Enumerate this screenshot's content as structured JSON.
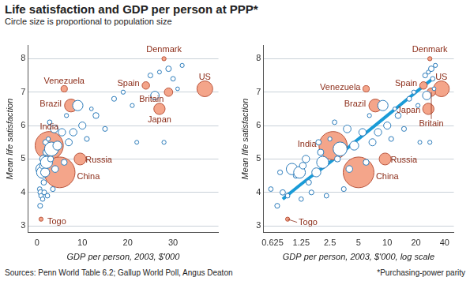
{
  "title": "Life satisfaction and GDP per person at PPP*",
  "subtitle": "Circle size is proportional to population size",
  "source": "Sources: Penn World Table 6.2; Gallup World Poll, Angus Deaton",
  "note": "*Purchasing-power parity",
  "chart_data": [
    {
      "type": "scatter",
      "x_label": "GDP per person, 2003, $'000",
      "y_label": "Mean life satisfaction",
      "xlim": [
        -2,
        40
      ],
      "xticks": [
        0,
        10,
        20,
        30
      ],
      "ylim": [
        2.8,
        8.4
      ],
      "yticks": [
        3,
        4,
        5,
        6,
        7,
        8
      ],
      "grid": "y",
      "series": [
        {
          "type": "scatter",
          "labels": [
            "Denmark",
            "Venezuela",
            "Spain",
            "US",
            "Britain",
            "Japan",
            "Brazil",
            "India",
            "Russia",
            "China",
            "Togo",
            null,
            null,
            null,
            null,
            null,
            null,
            null,
            null,
            null,
            null,
            null,
            null,
            null,
            null,
            null,
            null,
            null,
            null,
            null,
            null,
            null,
            null,
            null,
            null,
            null,
            null,
            null,
            null,
            null,
            null,
            null,
            null,
            null,
            null,
            null,
            null,
            null,
            null,
            null,
            null,
            null,
            null,
            null,
            null,
            null,
            null,
            null,
            null,
            null
          ],
          "x": [
            28,
            6.0,
            24,
            37,
            29,
            27,
            7.5,
            2.7,
            9.5,
            5.0,
            0.9,
            0.6,
            0.7,
            0.75,
            0.8,
            0.9,
            1.0,
            1.1,
            1.2,
            1.25,
            1.3,
            1.4,
            1.5,
            1.6,
            1.8,
            1.9,
            2.0,
            2.1,
            2.3,
            2.5,
            2.8,
            3.0,
            3.2,
            3.5,
            3.8,
            4.0,
            4.5,
            5.5,
            6.0,
            6.5,
            7.0,
            8.0,
            9.0,
            10,
            11,
            12,
            13,
            15,
            17,
            19,
            21,
            22,
            25,
            26,
            27,
            30,
            31,
            32,
            29,
            28
          ],
          "values": [
            8.0,
            7.1,
            7.2,
            7.1,
            7.0,
            6.5,
            6.6,
            5.4,
            5.0,
            4.6,
            3.2,
            4.1,
            3.6,
            4.6,
            4.0,
            3.9,
            4.7,
            4.5,
            4.6,
            3.8,
            4.8,
            5.0,
            4.3,
            4.0,
            4.6,
            5.5,
            5.2,
            4.9,
            3.9,
            5.6,
            6.1,
            5.0,
            5.3,
            4.1,
            5.9,
            4.7,
            5.4,
            5.8,
            4.9,
            6.3,
            5.5,
            5.8,
            6.6,
            6.0,
            5.6,
            6.5,
            6.3,
            5.9,
            6.8,
            7.0,
            6.6,
            5.5,
            7.5,
            6.9,
            7.6,
            7.4,
            7.1,
            7.8,
            7.7,
            5.5
          ],
          "population": [
            5.4,
            26,
            42,
            290,
            59,
            127,
            178,
            1070,
            145,
            1290,
            5,
            8,
            10,
            10,
            15,
            8,
            130,
            12,
            140,
            7,
            30,
            40,
            15,
            10,
            70,
            15,
            25,
            150,
            8,
            5,
            8,
            20,
            215,
            10,
            45,
            30,
            70,
            40,
            20,
            5,
            35,
            40,
            102,
            38,
            10,
            3,
            20,
            10,
            10,
            5,
            5,
            4,
            10,
            60,
            4,
            8,
            3,
            5,
            16,
            5
          ],
          "colors": [
            "#f4a58a",
            "#f4a58a",
            "#f4a58a",
            "#f4a58a",
            "#f4a58a",
            "#f4a58a",
            "#f4a58a",
            "#f4a58a",
            "#f4a58a",
            "#f4a58a",
            "#f4a58a",
            "#ffffff",
            "#ffffff",
            "#ffffff",
            "#ffffff",
            "#ffffff",
            "#ffffff",
            "#ffffff",
            "#ffffff",
            "#ffffff",
            "#ffffff",
            "#ffffff",
            "#ffffff",
            "#ffffff",
            "#ffffff",
            "#ffffff",
            "#ffffff",
            "#ffffff",
            "#ffffff",
            "#ffffff",
            "#ffffff",
            "#ffffff",
            "#ffffff",
            "#ffffff",
            "#ffffff",
            "#ffffff",
            "#ffffff",
            "#ffffff",
            "#ffffff",
            "#ffffff",
            "#ffffff",
            "#ffffff",
            "#ffffff",
            "#ffffff",
            "#ffffff",
            "#ffffff",
            "#ffffff",
            "#ffffff",
            "#ffffff",
            "#ffffff",
            "#ffffff",
            "#ffffff",
            "#ffffff",
            "#ffffff",
            "#ffffff",
            "#ffffff",
            "#ffffff",
            "#ffffff",
            "#ffffff",
            "#ffffff"
          ]
        }
      ]
    },
    {
      "type": "scatter",
      "x_label": "GDP per person, 2003, $'000, log scale",
      "y_label": "Mean life satisfaction",
      "log": "x",
      "xlim": [
        0.5,
        50
      ],
      "xticks": [
        0.625,
        1.25,
        2.5,
        5,
        10,
        20,
        40
      ],
      "ylim": [
        2.8,
        8.4
      ],
      "yticks": [
        3,
        4,
        5,
        6,
        7,
        8
      ],
      "grid": "y",
      "series": [
        {
          "type": "scatter",
          "labels": [
            "Denmark",
            "Venezuela",
            "Spain",
            "US",
            "Britain",
            "Japan",
            "Brazil",
            "India",
            "Russia",
            "China",
            "Togo",
            null,
            null,
            null,
            null,
            null,
            null,
            null,
            null,
            null,
            null,
            null,
            null,
            null,
            null,
            null,
            null,
            null,
            null,
            null,
            null,
            null,
            null,
            null,
            null,
            null,
            null,
            null,
            null,
            null,
            null,
            null,
            null,
            null,
            null,
            null,
            null,
            null,
            null,
            null,
            null,
            null,
            null,
            null,
            null,
            null,
            null,
            null,
            null,
            null
          ],
          "x": [
            28,
            6.0,
            24,
            37,
            29,
            27,
            7.5,
            2.7,
            9.5,
            5.0,
            0.9,
            0.6,
            0.7,
            0.75,
            0.8,
            0.9,
            1.0,
            1.1,
            1.2,
            1.25,
            1.3,
            1.4,
            1.5,
            1.6,
            1.8,
            1.9,
            2.0,
            2.1,
            2.3,
            2.5,
            2.8,
            3.0,
            3.2,
            3.5,
            3.8,
            4.0,
            4.5,
            5.5,
            6.0,
            6.5,
            7.0,
            8.0,
            9.0,
            10,
            11,
            12,
            13,
            15,
            17,
            19,
            21,
            22,
            25,
            26,
            27,
            30,
            31,
            32,
            29,
            28
          ],
          "values": [
            8.0,
            7.1,
            7.2,
            7.1,
            7.0,
            6.5,
            6.6,
            5.4,
            5.0,
            4.6,
            3.2,
            4.1,
            3.6,
            4.6,
            4.0,
            3.9,
            4.7,
            4.5,
            4.6,
            3.8,
            4.8,
            5.0,
            4.3,
            4.0,
            4.6,
            5.5,
            5.2,
            4.9,
            3.9,
            5.6,
            6.1,
            5.0,
            5.3,
            4.1,
            5.9,
            4.7,
            5.4,
            5.8,
            4.9,
            6.3,
            5.5,
            5.8,
            6.6,
            6.0,
            5.6,
            6.5,
            6.3,
            5.9,
            6.8,
            7.0,
            6.6,
            5.5,
            7.5,
            6.9,
            7.6,
            7.4,
            7.1,
            7.8,
            7.7,
            5.5
          ],
          "population": [
            5.4,
            26,
            42,
            290,
            59,
            127,
            178,
            1070,
            145,
            1290,
            5,
            8,
            10,
            10,
            15,
            8,
            130,
            12,
            140,
            7,
            30,
            40,
            15,
            10,
            70,
            15,
            25,
            150,
            8,
            5,
            8,
            20,
            215,
            10,
            45,
            30,
            70,
            40,
            20,
            5,
            35,
            40,
            102,
            38,
            10,
            3,
            20,
            10,
            10,
            5,
            5,
            4,
            10,
            60,
            4,
            8,
            3,
            5,
            16,
            5
          ],
          "colors": [
            "#f4a58a",
            "#f4a58a",
            "#f4a58a",
            "#f4a58a",
            "#f4a58a",
            "#f4a58a",
            "#f4a58a",
            "#f4a58a",
            "#f4a58a",
            "#f4a58a",
            "#f4a58a",
            "#ffffff",
            "#ffffff",
            "#ffffff",
            "#ffffff",
            "#ffffff",
            "#ffffff",
            "#ffffff",
            "#ffffff",
            "#ffffff",
            "#ffffff",
            "#ffffff",
            "#ffffff",
            "#ffffff",
            "#ffffff",
            "#ffffff",
            "#ffffff",
            "#ffffff",
            "#ffffff",
            "#ffffff",
            "#ffffff",
            "#ffffff",
            "#ffffff",
            "#ffffff",
            "#ffffff",
            "#ffffff",
            "#ffffff",
            "#ffffff",
            "#ffffff",
            "#ffffff",
            "#ffffff",
            "#ffffff",
            "#ffffff",
            "#ffffff",
            "#ffffff",
            "#ffffff",
            "#ffffff",
            "#ffffff",
            "#ffffff",
            "#ffffff",
            "#ffffff",
            "#ffffff",
            "#ffffff",
            "#ffffff",
            "#ffffff",
            "#ffffff",
            "#ffffff",
            "#ffffff",
            "#ffffff",
            "#ffffff"
          ]
        },
        {
          "type": "line",
          "color": "#1a9bd7",
          "x": [
            0.8,
            1.25,
            2.5,
            5,
            10,
            20,
            30
          ],
          "values": [
            3.8,
            4.25,
            4.9,
            5.6,
            6.3,
            7.0,
            7.4
          ]
        }
      ]
    }
  ]
}
